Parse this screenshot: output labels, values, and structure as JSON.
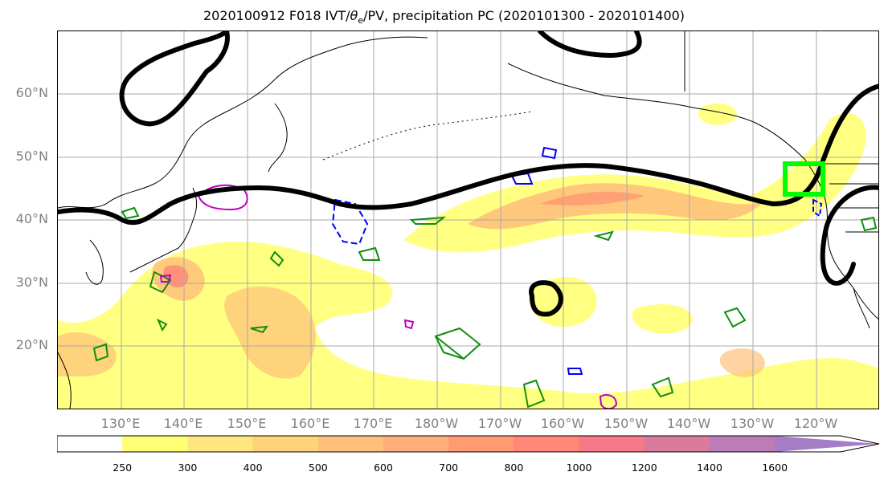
{
  "title": {
    "prefix": "2020100912 F018 IVT/",
    "theta": "θ",
    "theta_sub": "e",
    "suffix": "/PV, precipitation PC (2020101300 - 2020101400)"
  },
  "lat_labels": [
    "60°N",
    "50°N",
    "40°N",
    "30°N",
    "20°N"
  ],
  "lon_labels": [
    "130°E",
    "140°E",
    "150°E",
    "160°E",
    "170°E",
    "180°W",
    "170°W",
    "160°W",
    "150°W",
    "140°W",
    "130°W",
    "120°W"
  ],
  "colorbar": {
    "ticks": [
      "250",
      "300",
      "400",
      "500",
      "600",
      "700",
      "800",
      "1000",
      "1200",
      "1400",
      "1600"
    ],
    "colors": [
      "#ffffff",
      "#ffff73",
      "#ffe680",
      "#ffd479",
      "#ffc17a",
      "#ffae7a",
      "#ff9a73",
      "#ff8878",
      "#f37a86",
      "#d97b9c",
      "#bb7cb8",
      "#a57cc6"
    ]
  },
  "colors": {
    "precip_low": "#ffff73",
    "precip_mid": "#ffc17a",
    "precip_high": "#ff8878",
    "theta_contour": "#000000",
    "pv_green": "#108f10",
    "pv_blue": "#0000ff",
    "pv_magenta": "#c000c0",
    "target_box": "#00ff00"
  }
}
